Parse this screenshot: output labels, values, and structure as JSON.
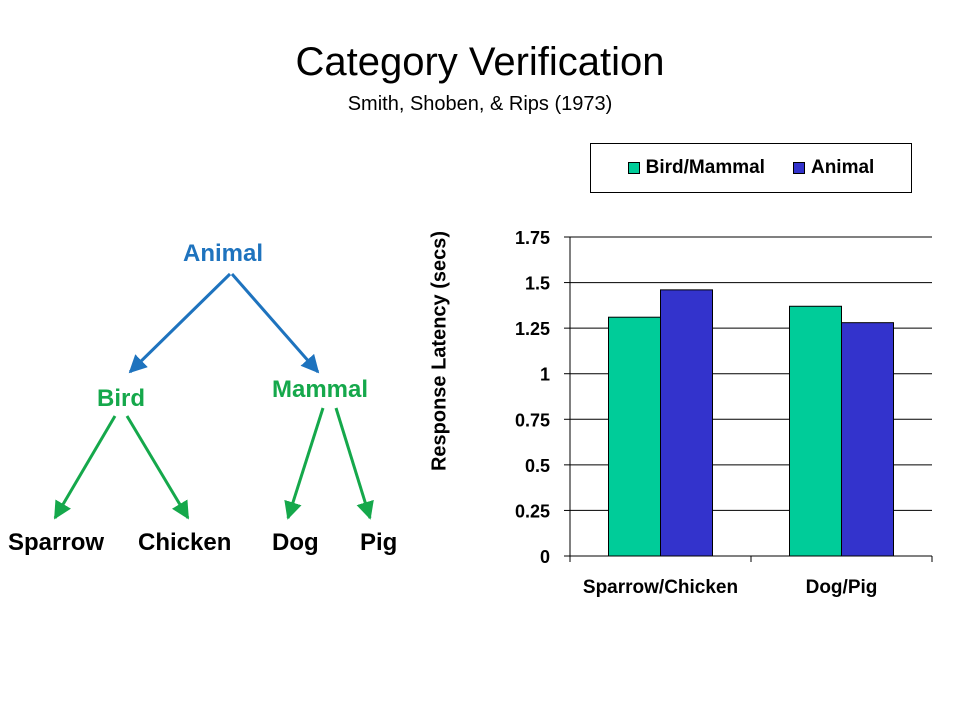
{
  "slide": {
    "title": "Category Verification",
    "subtitle": "Smith, Shoben, & Rips (1973)"
  },
  "tree": {
    "root": "Animal",
    "left": "Bird",
    "right": "Mammal",
    "leaves": [
      "Sparrow",
      "Chicken",
      "Dog",
      "Pig"
    ],
    "colors": {
      "root": "#1E73BE",
      "branches": "#15A84B"
    }
  },
  "chart_data": {
    "type": "bar",
    "categories": [
      "Sparrow/Chicken",
      "Dog/Pig"
    ],
    "series": [
      {
        "name": "Bird/Mammal",
        "values": [
          1.31,
          1.37
        ],
        "color": "#00CC99"
      },
      {
        "name": "Animal",
        "values": [
          1.46,
          1.28
        ],
        "color": "#3333CC"
      }
    ],
    "ylabel": "Response Latency (secs)",
    "ylim": [
      0,
      1.75
    ],
    "yticks": [
      "0",
      "0.25",
      "0.5",
      "0.75",
      "1",
      "1.25",
      "1.5",
      "1.75"
    ],
    "grid": true,
    "legend_position": "top-right"
  }
}
